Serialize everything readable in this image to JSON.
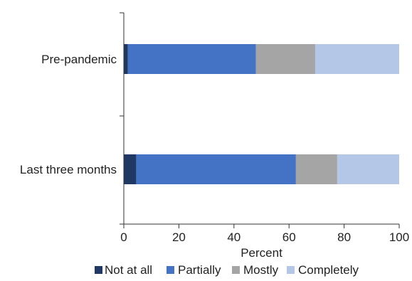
{
  "chart_data": {
    "type": "bar",
    "orientation": "horizontal",
    "stacked": true,
    "title": "",
    "xlabel": "Percent",
    "ylabel": "",
    "xlim": [
      0,
      100
    ],
    "xticks": [
      0,
      20,
      40,
      60,
      80,
      100
    ],
    "grid": false,
    "legend_position": "bottom",
    "categories": [
      "Pre-pandemic",
      "Last three months"
    ],
    "series": [
      {
        "name": "Not at all",
        "color": "#1f3864",
        "values": [
          1.5,
          4.5
        ]
      },
      {
        "name": "Partially",
        "color": "#4472c4",
        "values": [
          46.5,
          58
        ]
      },
      {
        "name": "Mostly",
        "color": "#a5a5a5",
        "values": [
          21.5,
          15
        ]
      },
      {
        "name": "Completely",
        "color": "#b4c7e7",
        "values": [
          30.5,
          22.5
        ]
      }
    ]
  }
}
